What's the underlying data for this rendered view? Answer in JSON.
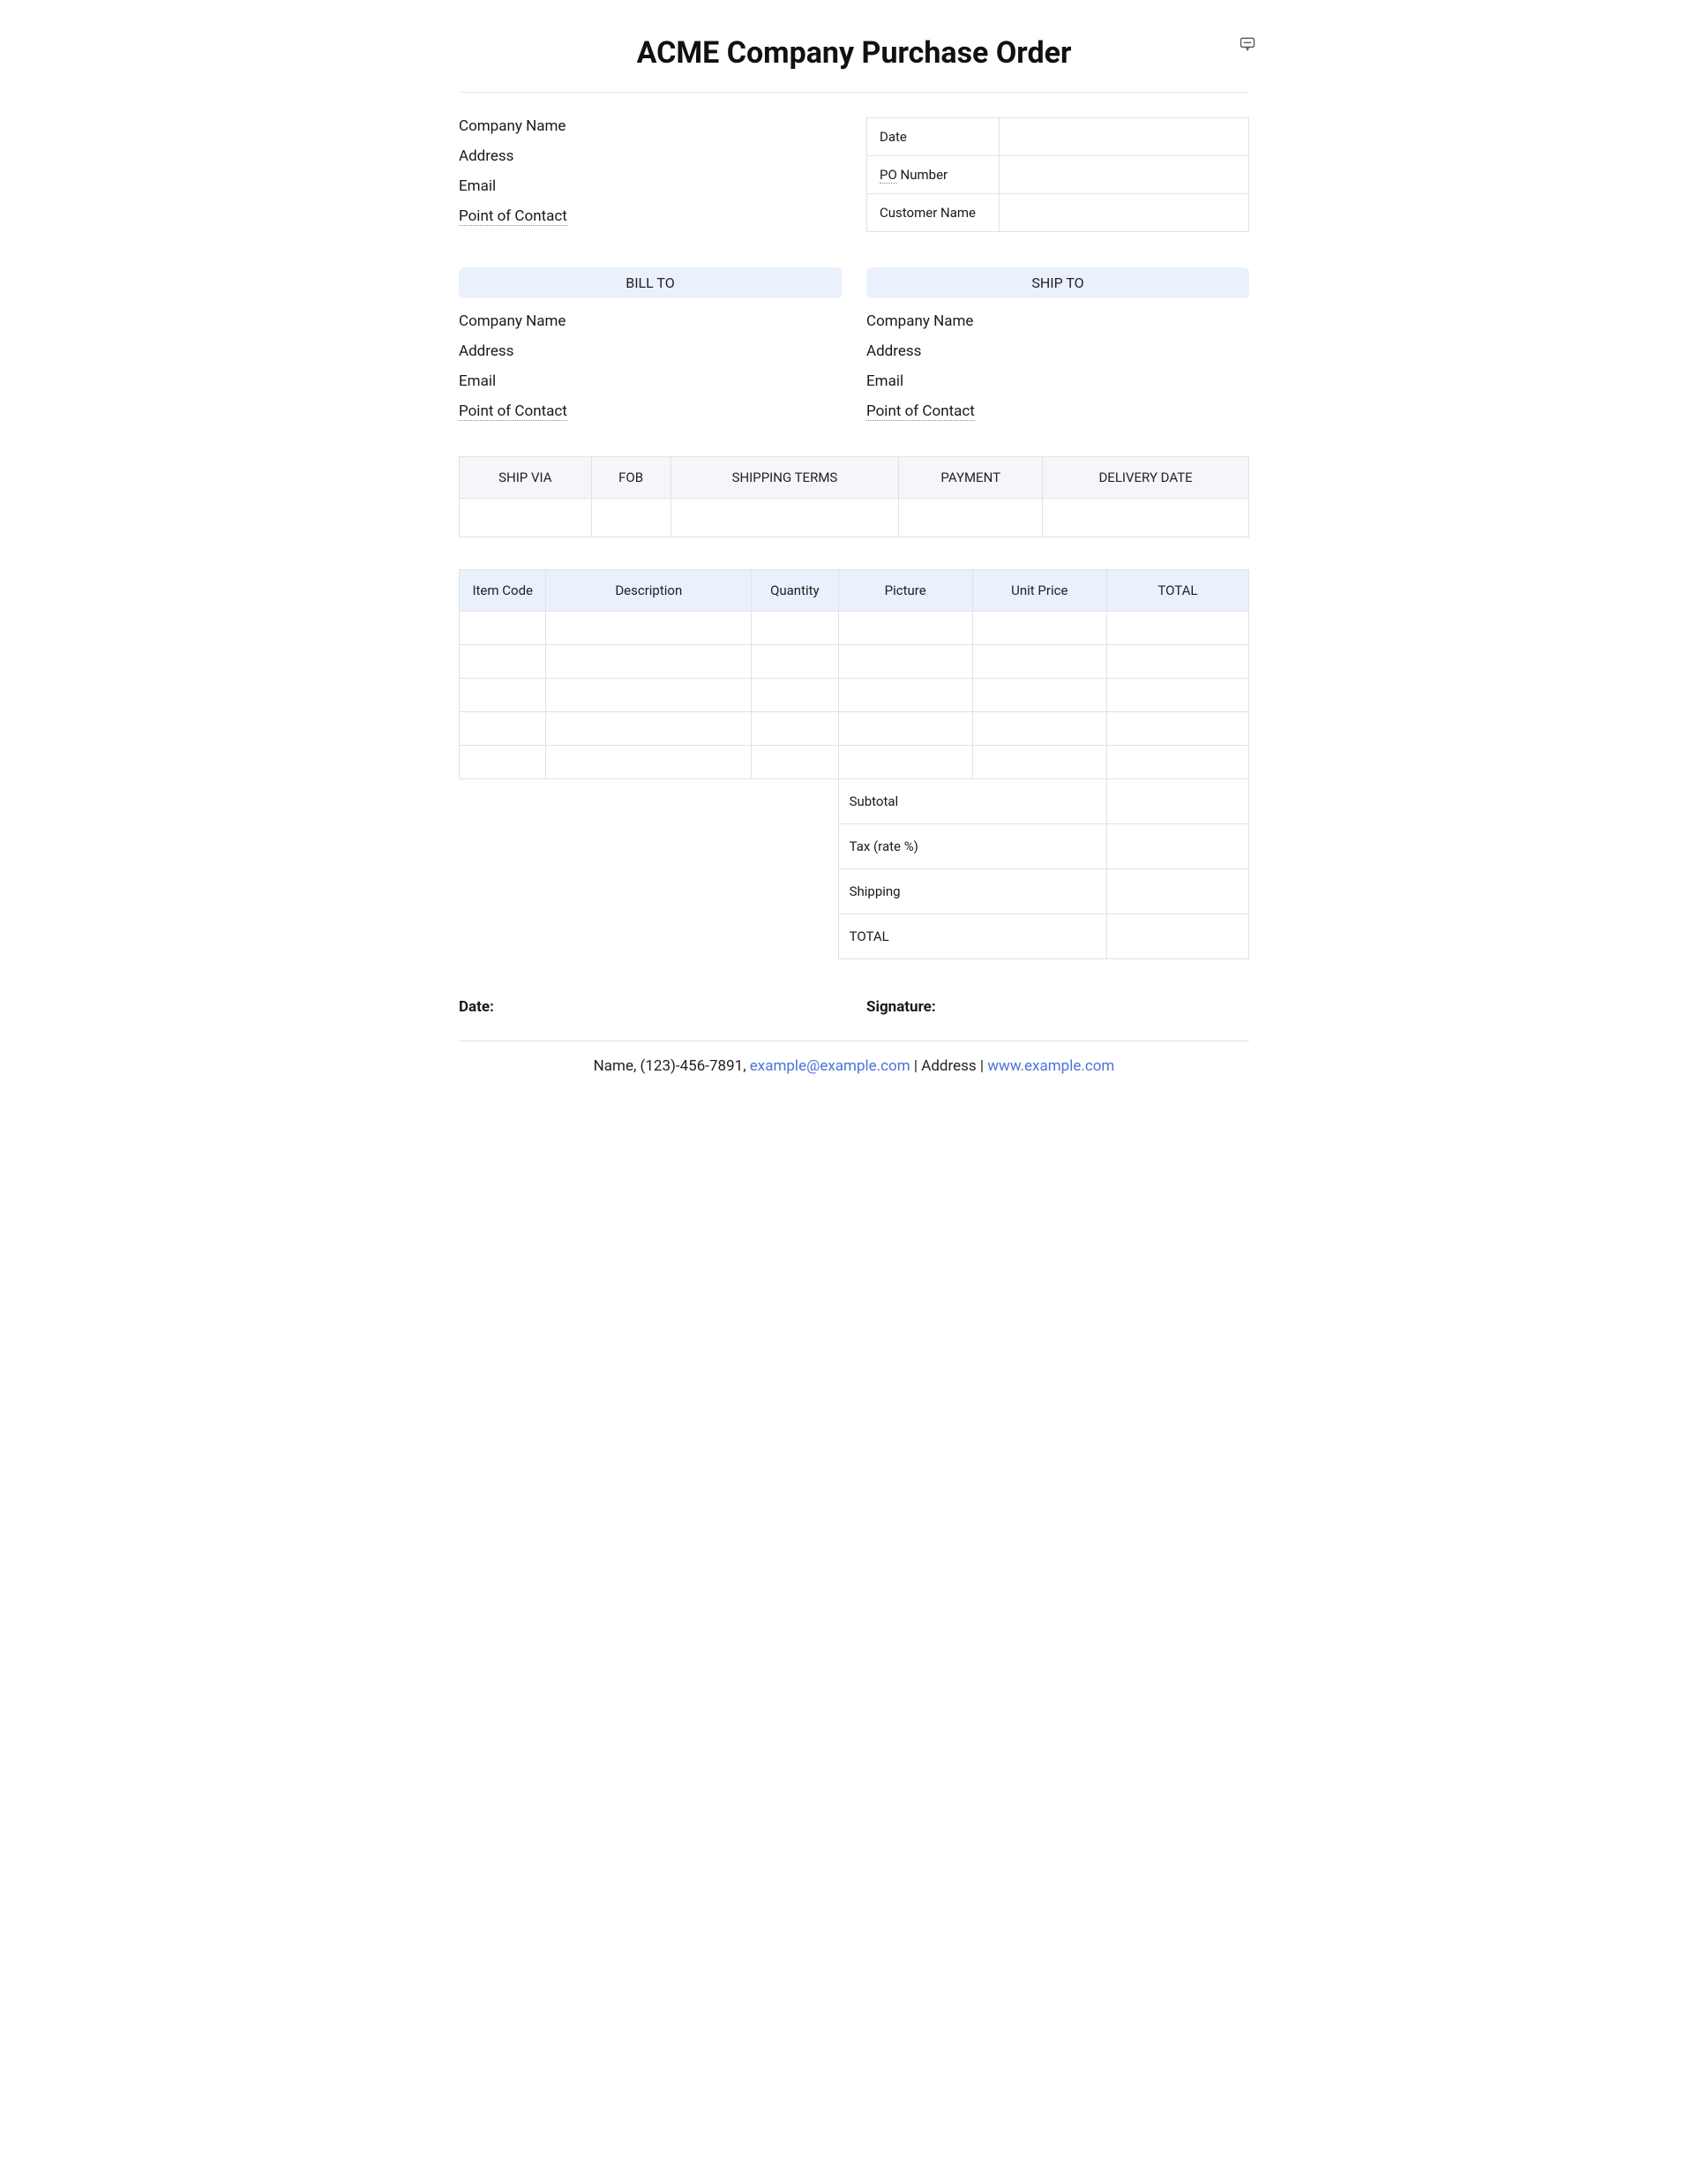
{
  "title": "ACME Company Purchase Order",
  "vendor": {
    "company_label": "Company Name",
    "address_label": "Address",
    "email_label": "Email",
    "poc_label": "Point of Contact"
  },
  "meta": {
    "rows": [
      {
        "label_plain": "Date",
        "label_dotted": "",
        "value": ""
      },
      {
        "label_plain": "",
        "label_dotted": "PO",
        "label_suffix": " Number",
        "value": ""
      },
      {
        "label_plain": "Customer Name",
        "label_dotted": "",
        "value": ""
      }
    ]
  },
  "bill_to": {
    "header": "BILL TO",
    "company_label": "Company Name",
    "address_label": "Address",
    "email_label": "Email",
    "poc_label": "Point of Contact"
  },
  "ship_to": {
    "header": "SHIP TO",
    "company_label": "Company Name",
    "address_label": "Address",
    "email_label": "Email",
    "poc_label": "Point of Contact"
  },
  "shipping_table": {
    "columns": [
      "SHIP VIA",
      "FOB",
      "SHIPPING TERMS",
      "PAYMENT",
      "DELIVERY DATE"
    ],
    "rows": [
      [
        "",
        "",
        "",
        "",
        ""
      ]
    ]
  },
  "items_table": {
    "columns": [
      "Item Code",
      "Description",
      "Quantity",
      "Picture",
      "Unit Price",
      "TOTAL"
    ],
    "col_widths_pct": [
      11,
      26,
      11,
      17,
      17,
      18
    ],
    "rows": [
      [
        "",
        "",
        "",
        "",
        "",
        ""
      ],
      [
        "",
        "",
        "",
        "",
        "",
        ""
      ],
      [
        "",
        "",
        "",
        "",
        "",
        ""
      ],
      [
        "",
        "",
        "",
        "",
        "",
        ""
      ],
      [
        "",
        "",
        "",
        "",
        "",
        ""
      ]
    ],
    "summary": [
      {
        "label": "Subtotal",
        "value": ""
      },
      {
        "label": "Tax (rate %)",
        "value": ""
      },
      {
        "label": "Shipping",
        "value": ""
      },
      {
        "label": "TOTAL",
        "value": ""
      }
    ]
  },
  "signature": {
    "date_label": "Date:",
    "signature_label": "Signature:"
  },
  "footer": {
    "name": "Name",
    "phone": "(123)-456-7891",
    "email": "example@example.com",
    "address": "Address",
    "website": "www.example.com"
  },
  "colors": {
    "header_blue": "#eaf0fc",
    "header_grey": "#f5f5fa",
    "border": "#e2e2e6",
    "link": "#4a74d8"
  }
}
